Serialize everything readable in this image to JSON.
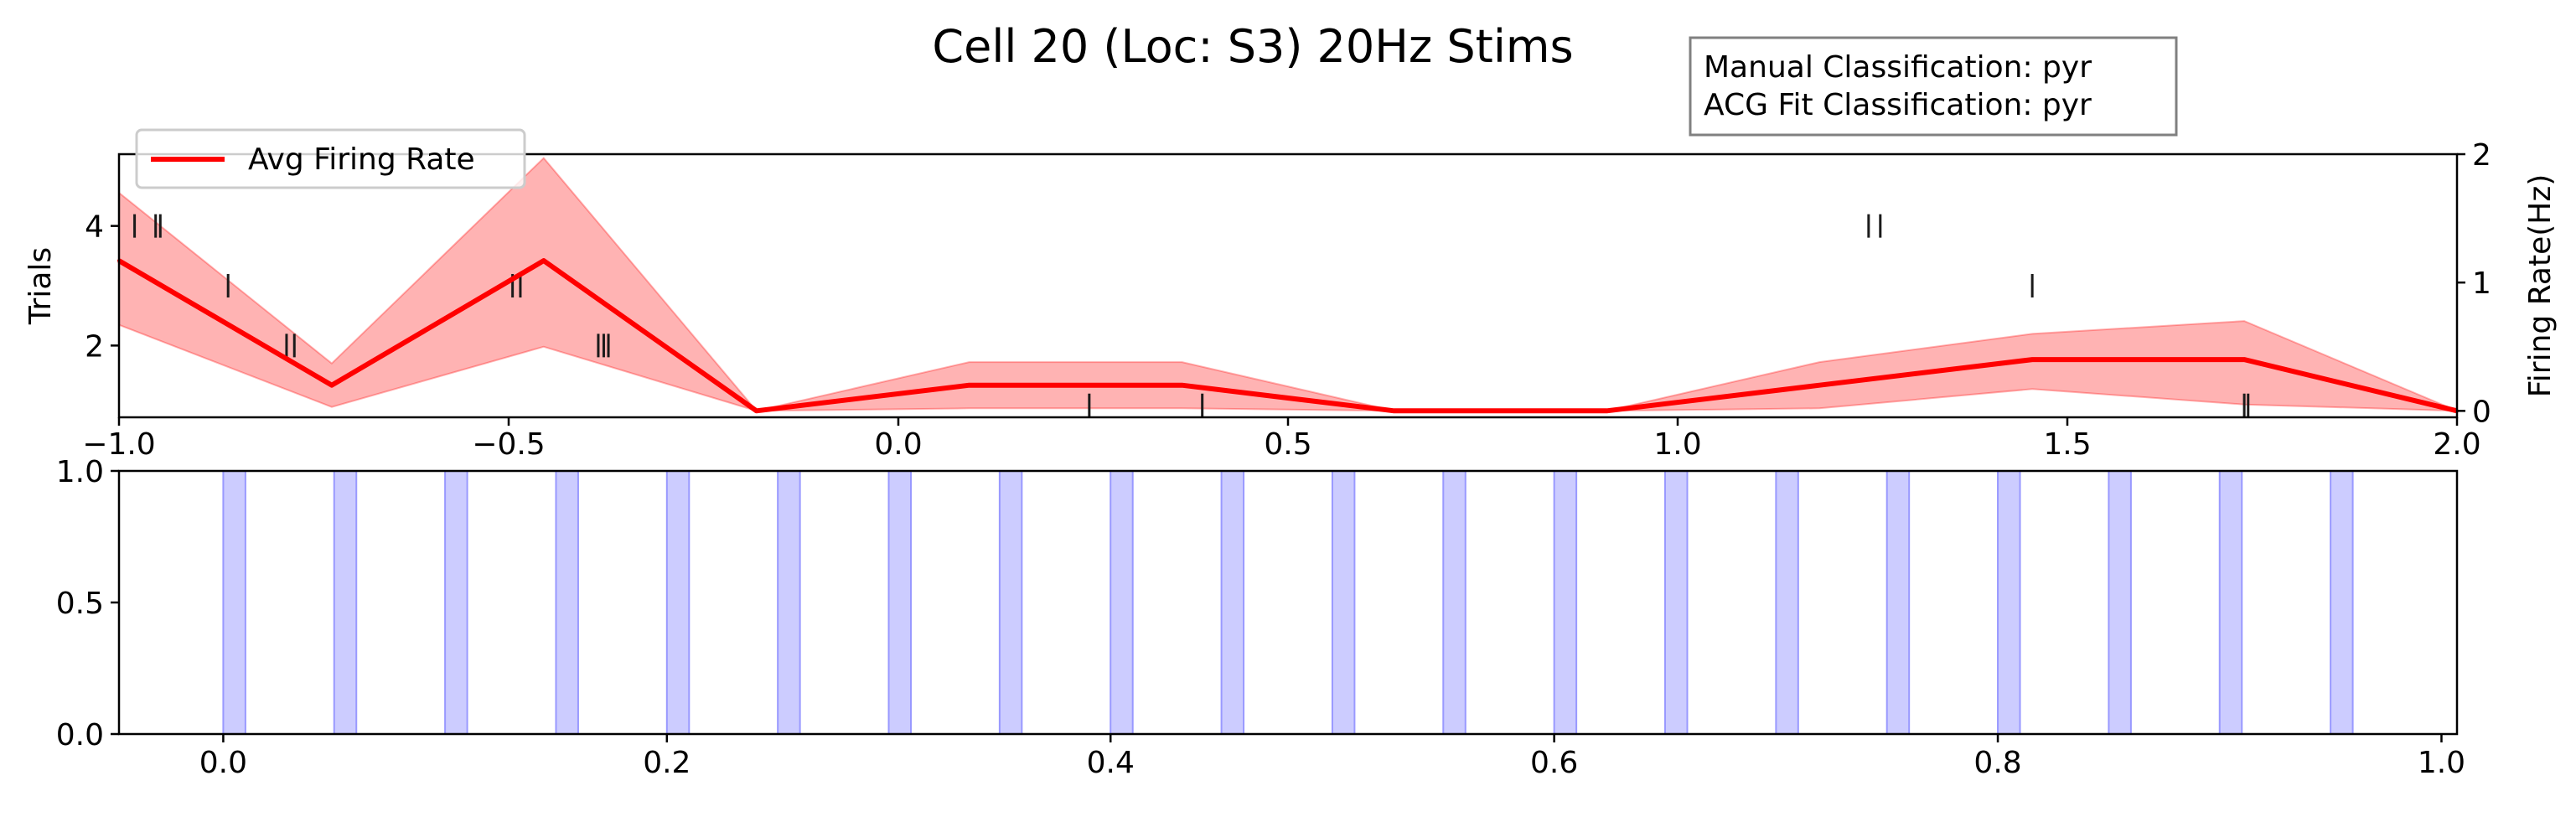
{
  "figure": {
    "title": "Cell 20 (Loc: S3) 20Hz Stims",
    "classification_box": [
      "Manual Classification: pyr",
      "ACG Fit Classification: pyr"
    ]
  },
  "colors": {
    "rate_line": "#ff0000",
    "rate_band": "#ff9999",
    "raster": "#1a1a1a",
    "stim": "#ccccff",
    "stim_edge": "#9999ff"
  },
  "chart_data": [
    {
      "type": "line",
      "panel": "raster-and-firing-rate",
      "xlim": [
        -1.0,
        2.0
      ],
      "x_ticks": [
        -1.0,
        -0.5,
        0.0,
        0.5,
        1.0,
        1.5,
        2.0
      ],
      "x_tick_labels": [
        "−1.0",
        "−0.5",
        "0.0",
        "0.5",
        "1.0",
        "1.5",
        "2.0"
      ],
      "left_axis": {
        "label": "Trials",
        "ylim": [
          0.8,
          5.2
        ],
        "ticks": [
          2,
          4
        ],
        "tick_labels": [
          "2",
          "4"
        ]
      },
      "right_axis": {
        "label": "Firing Rate(Hz)",
        "ylim": [
          -0.05,
          2.0
        ],
        "ticks": [
          0,
          1,
          2
        ],
        "tick_labels": [
          "0",
          "1",
          "2"
        ]
      },
      "legend": {
        "entries": [
          "Avg Firing Rate"
        ],
        "position": "upper-left"
      },
      "series": [
        {
          "name": "Avg Firing Rate",
          "axis": "right",
          "x": [
            -1.0,
            -0.727,
            -0.455,
            -0.182,
            0.091,
            0.364,
            0.636,
            0.909,
            1.182,
            1.455,
            1.727,
            2.0
          ],
          "values": [
            1.17,
            0.2,
            1.17,
            0.0,
            0.2,
            0.2,
            0.0,
            0.0,
            0.2,
            0.4,
            0.4,
            0.0
          ],
          "upper": [
            1.7,
            0.37,
            1.97,
            0.0,
            0.38,
            0.38,
            0.0,
            0.0,
            0.38,
            0.6,
            0.7,
            0.0
          ],
          "lower": [
            0.67,
            0.03,
            0.5,
            0.0,
            0.02,
            0.02,
            0.0,
            0.0,
            0.02,
            0.17,
            0.05,
            0.0
          ]
        }
      ],
      "raster": [
        {
          "trial": 4,
          "times": [
            -0.98,
            -0.953,
            -0.947,
            1.245,
            1.26
          ]
        },
        {
          "trial": 3,
          "times": [
            -0.86,
            -0.495,
            -0.485,
            1.455
          ]
        },
        {
          "trial": 2,
          "times": [
            -0.785,
            -0.775,
            -0.385,
            -0.378,
            -0.372
          ]
        },
        {
          "trial": 1,
          "times": [
            0.245,
            0.39,
            1.727,
            1.732
          ]
        }
      ]
    },
    {
      "type": "bar",
      "panel": "stimulation-times",
      "xlim": [
        -0.047,
        1.007
      ],
      "ylim": [
        0.0,
        1.0
      ],
      "x_ticks": [
        0.0,
        0.2,
        0.4,
        0.6,
        0.8,
        1.0
      ],
      "x_tick_labels": [
        "0.0",
        "0.2",
        "0.4",
        "0.6",
        "0.8",
        "1.0"
      ],
      "y_ticks": [
        0.0,
        0.5,
        1.0
      ],
      "y_tick_labels": [
        "0.0",
        "0.5",
        "1.0"
      ],
      "pulse_width": 0.01,
      "pulse_starts": [
        0.0,
        0.05,
        0.1,
        0.15,
        0.2,
        0.25,
        0.3,
        0.35,
        0.4,
        0.45,
        0.5,
        0.55,
        0.6,
        0.65,
        0.7,
        0.75,
        0.8,
        0.85,
        0.9,
        0.95
      ]
    }
  ]
}
